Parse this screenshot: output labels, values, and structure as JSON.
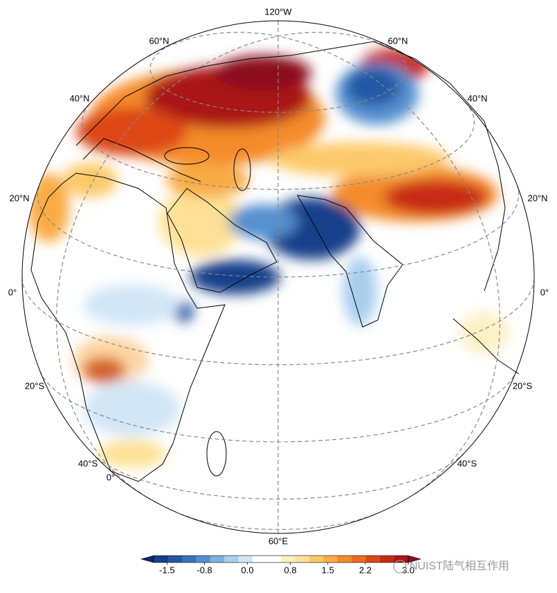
{
  "map": {
    "graticule_labels": [
      "120°W",
      "60°N",
      "60°N",
      "40°N",
      "40°N",
      "20°N",
      "20°N",
      "0°",
      "0°",
      "20°S",
      "20°S",
      "40°S",
      "40°S",
      "0°",
      "60°E"
    ],
    "colorbar": {
      "colors": [
        "#0b2a66",
        "#173f8a",
        "#2358a6",
        "#3573bd",
        "#5590cf",
        "#7eb1e0",
        "#a9cfee",
        "#d2e6f7",
        "#ffffff",
        "#ffffff",
        "#fdf0c2",
        "#fde196",
        "#fcc96a",
        "#f9ab45",
        "#f48b2c",
        "#ec6a1f",
        "#dd4617",
        "#c72a17",
        "#ab1519",
        "#8a0b1b"
      ],
      "lim": [
        -1.75,
        3.0
      ],
      "ticks": [
        -1.5,
        -0.8,
        {
          "value": 0,
          "label": "0.0"
        },
        0.8,
        1.5,
        2.2,
        {
          "value": 3,
          "label": "3.0"
        }
      ]
    },
    "watermark": "NUIST陆气相互作用"
  }
}
